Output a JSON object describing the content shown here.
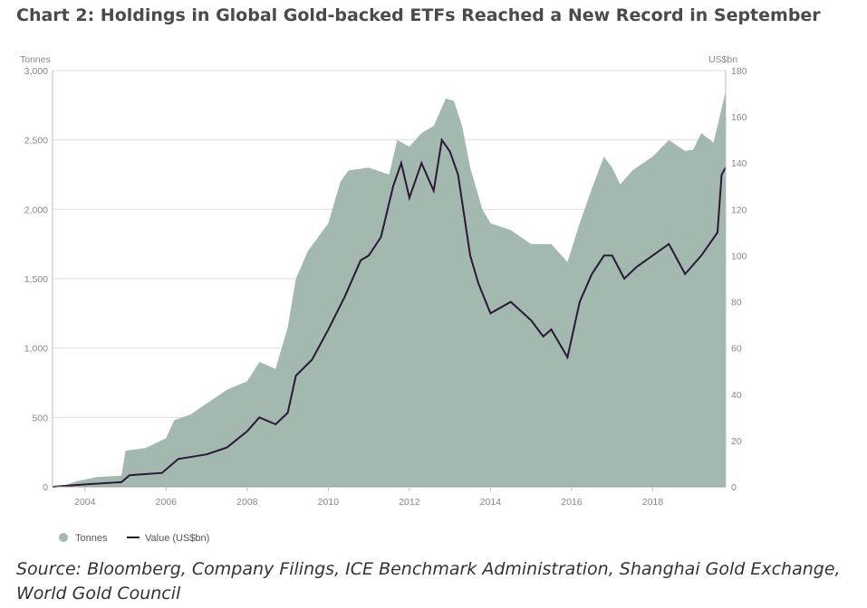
{
  "title": "Chart 2: Holdings in Global Gold-backed ETFs Reached a New Record in September",
  "source": "Source: Bloomberg, Company Filings, ICE Benchmark Administration, Shanghai Gold Exchange, World Gold Council",
  "chart_data": {
    "type": "area",
    "title": "Chart 2: Holdings in Global Gold-backed ETFs Reached a New Record in September",
    "xlabel": "",
    "ylabel": "Tonnes",
    "y2label": "US$bn",
    "xlim": [
      2003.2,
      2019.8
    ],
    "ylim": [
      0,
      3000
    ],
    "y2lim": [
      0,
      180
    ],
    "x_ticks": [
      "2004",
      "2006",
      "2008",
      "2010",
      "2012",
      "2014",
      "2016",
      "2018"
    ],
    "y_ticks": [
      "0",
      "500",
      "1,000",
      "1,500",
      "2,000",
      "2,500",
      "3,000"
    ],
    "y2_ticks": [
      "0",
      "20",
      "40",
      "60",
      "80",
      "100",
      "120",
      "140",
      "160",
      "180"
    ],
    "grid": true,
    "legend_position": "bottom-left",
    "colors": {
      "tonnes": "#a3b8ae",
      "value": "#2a1838"
    },
    "series": [
      {
        "name": "Tonnes",
        "axis": "left",
        "style": "area",
        "x": [
          2003.2,
          2003.5,
          2003.8,
          2004.3,
          2004.9,
          2005.0,
          2005.5,
          2006.0,
          2006.2,
          2006.6,
          2007.0,
          2007.5,
          2008.0,
          2008.3,
          2008.7,
          2009.0,
          2009.2,
          2009.5,
          2010.0,
          2010.3,
          2010.5,
          2011.0,
          2011.5,
          2011.7,
          2012.0,
          2012.3,
          2012.6,
          2012.9,
          2013.1,
          2013.3,
          2013.5,
          2013.8,
          2014.0,
          2014.5,
          2015.0,
          2015.5,
          2015.9,
          2016.2,
          2016.5,
          2016.8,
          2017.0,
          2017.2,
          2017.5,
          2018.0,
          2018.4,
          2018.8,
          2019.0,
          2019.2,
          2019.5,
          2019.8
        ],
        "values": [
          0,
          10,
          40,
          70,
          80,
          260,
          280,
          350,
          480,
          520,
          600,
          700,
          760,
          900,
          850,
          1150,
          1500,
          1700,
          1900,
          2200,
          2280,
          2300,
          2250,
          2500,
          2450,
          2550,
          2600,
          2800,
          2780,
          2600,
          2300,
          2000,
          1900,
          1850,
          1750,
          1750,
          1620,
          1900,
          2150,
          2380,
          2300,
          2180,
          2280,
          2380,
          2500,
          2420,
          2430,
          2550,
          2480,
          2850
        ]
      },
      {
        "name": "Value (US$bn)",
        "axis": "right",
        "style": "line",
        "x": [
          2003.2,
          2004.0,
          2004.9,
          2005.1,
          2005.9,
          2006.3,
          2007.0,
          2007.5,
          2008.0,
          2008.3,
          2008.7,
          2009.0,
          2009.2,
          2009.6,
          2010.0,
          2010.4,
          2010.8,
          2011.0,
          2011.3,
          2011.6,
          2011.8,
          2012.0,
          2012.3,
          2012.6,
          2012.8,
          2013.0,
          2013.2,
          2013.5,
          2013.7,
          2014.0,
          2014.5,
          2015.0,
          2015.3,
          2015.5,
          2015.9,
          2016.2,
          2016.5,
          2016.8,
          2017.0,
          2017.3,
          2017.6,
          2018.0,
          2018.4,
          2018.8,
          2019.2,
          2019.4,
          2019.6,
          2019.7,
          2019.8
        ],
        "values": [
          0,
          1,
          2,
          5,
          6,
          12,
          14,
          17,
          24,
          30,
          27,
          32,
          48,
          55,
          68,
          82,
          98,
          100,
          108,
          130,
          140,
          125,
          140,
          128,
          150,
          145,
          135,
          100,
          88,
          75,
          80,
          72,
          65,
          68,
          56,
          80,
          92,
          100,
          100,
          90,
          95,
          100,
          105,
          92,
          100,
          105,
          110,
          135,
          138
        ]
      }
    ]
  }
}
